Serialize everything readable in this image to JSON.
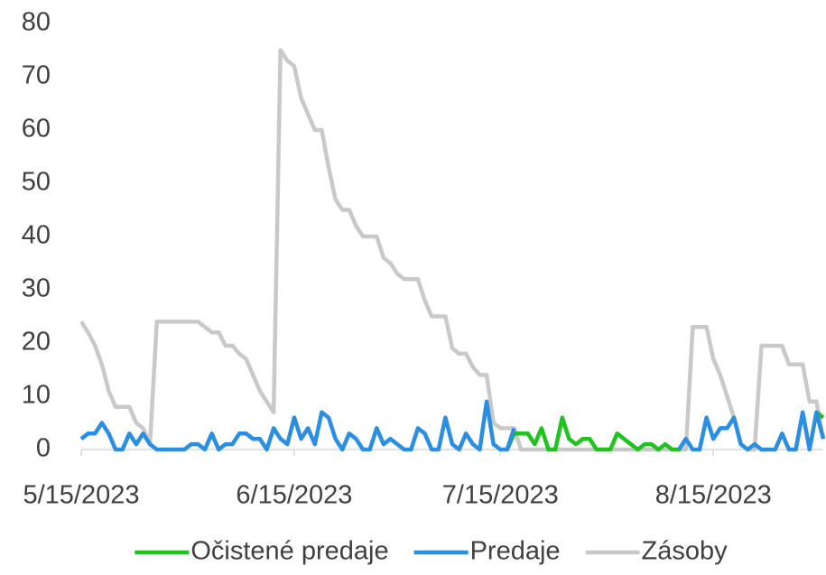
{
  "chart_data": {
    "type": "line",
    "x": [
      "5/15/2023",
      "5/16/2023",
      "5/17/2023",
      "5/18/2023",
      "5/19/2023",
      "5/20/2023",
      "5/21/2023",
      "5/22/2023",
      "5/23/2023",
      "5/24/2023",
      "5/25/2023",
      "5/26/2023",
      "5/27/2023",
      "5/28/2023",
      "5/29/2023",
      "5/30/2023",
      "5/31/2023",
      "6/1/2023",
      "6/2/2023",
      "6/3/2023",
      "6/4/2023",
      "6/5/2023",
      "6/6/2023",
      "6/7/2023",
      "6/8/2023",
      "6/9/2023",
      "6/10/2023",
      "6/11/2023",
      "6/12/2023",
      "6/13/2023",
      "6/14/2023",
      "6/15/2023",
      "6/16/2023",
      "6/17/2023",
      "6/18/2023",
      "6/19/2023",
      "6/20/2023",
      "6/21/2023",
      "6/22/2023",
      "6/23/2023",
      "6/24/2023",
      "6/25/2023",
      "6/26/2023",
      "6/27/2023",
      "6/28/2023",
      "6/29/2023",
      "6/30/2023",
      "7/1/2023",
      "7/2/2023",
      "7/3/2023",
      "7/4/2023",
      "7/5/2023",
      "7/6/2023",
      "7/7/2023",
      "7/8/2023",
      "7/9/2023",
      "7/10/2023",
      "7/11/2023",
      "7/12/2023",
      "7/13/2023",
      "7/14/2023",
      "7/15/2023",
      "7/16/2023",
      "7/17/2023",
      "7/18/2023",
      "7/19/2023",
      "7/20/2023",
      "7/21/2023",
      "7/22/2023",
      "7/23/2023",
      "7/24/2023",
      "7/25/2023",
      "7/26/2023",
      "7/27/2023",
      "7/28/2023",
      "7/29/2023",
      "7/30/2023",
      "7/31/2023",
      "8/1/2023",
      "8/2/2023",
      "8/3/2023",
      "8/4/2023",
      "8/5/2023",
      "8/6/2023",
      "8/7/2023",
      "8/8/2023",
      "8/9/2023",
      "8/10/2023",
      "8/11/2023",
      "8/12/2023",
      "8/13/2023",
      "8/14/2023",
      "8/15/2023",
      "8/16/2023",
      "8/17/2023",
      "8/18/2023",
      "8/19/2023",
      "8/20/2023",
      "8/21/2023",
      "8/22/2023",
      "8/23/2023",
      "8/24/2023",
      "8/25/2023",
      "8/26/2023",
      "8/27/2023",
      "8/28/2023",
      "8/29/2023",
      "8/30/2023",
      "8/31/2023"
    ],
    "series": [
      {
        "name": "Zásoby",
        "color": "#c9c9c9",
        "values": [
          24,
          22,
          19.5,
          16,
          11,
          8,
          8,
          8,
          5,
          4,
          1,
          24,
          24,
          24,
          24,
          24,
          24,
          24,
          23,
          22,
          22,
          19.5,
          19.5,
          18,
          17,
          14,
          11,
          9,
          7,
          75,
          73,
          72,
          66,
          63,
          60,
          60,
          53,
          47,
          45,
          45,
          42,
          40,
          40,
          40,
          36,
          35,
          33,
          32,
          32,
          32,
          28,
          25,
          25,
          25,
          19,
          18,
          18,
          15.5,
          14,
          14,
          5,
          4,
          4,
          4,
          0,
          0,
          0,
          0,
          0,
          0,
          0,
          0,
          0,
          0,
          0,
          0,
          0,
          0,
          0,
          0,
          0,
          0,
          0,
          0,
          0,
          0,
          0,
          0,
          0,
          23,
          23,
          23,
          17,
          14,
          10,
          6,
          1,
          0,
          0,
          19.5,
          19.5,
          19.5,
          19.5,
          16,
          16,
          16,
          9,
          9,
          2
        ]
      },
      {
        "name": "Očistené predaje",
        "color": "#1fc21f",
        "values": [
          null,
          null,
          null,
          null,
          null,
          null,
          null,
          null,
          null,
          null,
          null,
          null,
          null,
          null,
          null,
          null,
          null,
          null,
          null,
          null,
          null,
          null,
          null,
          null,
          null,
          null,
          null,
          null,
          null,
          null,
          null,
          null,
          null,
          null,
          null,
          null,
          null,
          null,
          null,
          null,
          null,
          null,
          null,
          null,
          null,
          null,
          null,
          null,
          null,
          null,
          null,
          null,
          null,
          null,
          null,
          null,
          null,
          null,
          null,
          null,
          null,
          null,
          0,
          3,
          3,
          3,
          1,
          4,
          0,
          0,
          6,
          2,
          1,
          2,
          2,
          0,
          0,
          0,
          3,
          2,
          1,
          0,
          1,
          1,
          0,
          1,
          0,
          0,
          2,
          null,
          null,
          null,
          null,
          null,
          null,
          null,
          null,
          null,
          null,
          null,
          null,
          null,
          null,
          null,
          null,
          null,
          null,
          7,
          6
        ]
      },
      {
        "name": "Predaje",
        "color": "#2b8ee0",
        "values": [
          2,
          3,
          3,
          5,
          3,
          0,
          0,
          3,
          1,
          3,
          1,
          0,
          0,
          0,
          0,
          0,
          1,
          1,
          0,
          3,
          0,
          1,
          1,
          3,
          3,
          2,
          2,
          0,
          4,
          2,
          1,
          6,
          2,
          4,
          1,
          7,
          6,
          2,
          0,
          3,
          2,
          0,
          0,
          4,
          1,
          2,
          1,
          0,
          0,
          4,
          3,
          0,
          0,
          6,
          1,
          0,
          3,
          1,
          0,
          9,
          1,
          0,
          0,
          4,
          null,
          null,
          null,
          null,
          null,
          null,
          null,
          null,
          null,
          null,
          null,
          null,
          null,
          null,
          null,
          null,
          null,
          null,
          null,
          null,
          null,
          null,
          null,
          0,
          2,
          0,
          0,
          6,
          2,
          4,
          4,
          6,
          1,
          0,
          1,
          0,
          0,
          0,
          3,
          0,
          0,
          7,
          0,
          7,
          2
        ]
      }
    ],
    "legend_order": [
      "Očistené predaje",
      "Predaje",
      "Zásoby"
    ],
    "xlim": [
      "5/15/2023",
      "8/31/2023"
    ],
    "xticks": [
      "5/15/2023",
      "6/15/2023",
      "7/15/2023",
      "8/15/2023"
    ],
    "ylim": [
      0,
      80
    ],
    "yticks": [
      0,
      10,
      20,
      30,
      40,
      50,
      60,
      70,
      80
    ],
    "grid": false,
    "legend": "bottom"
  }
}
